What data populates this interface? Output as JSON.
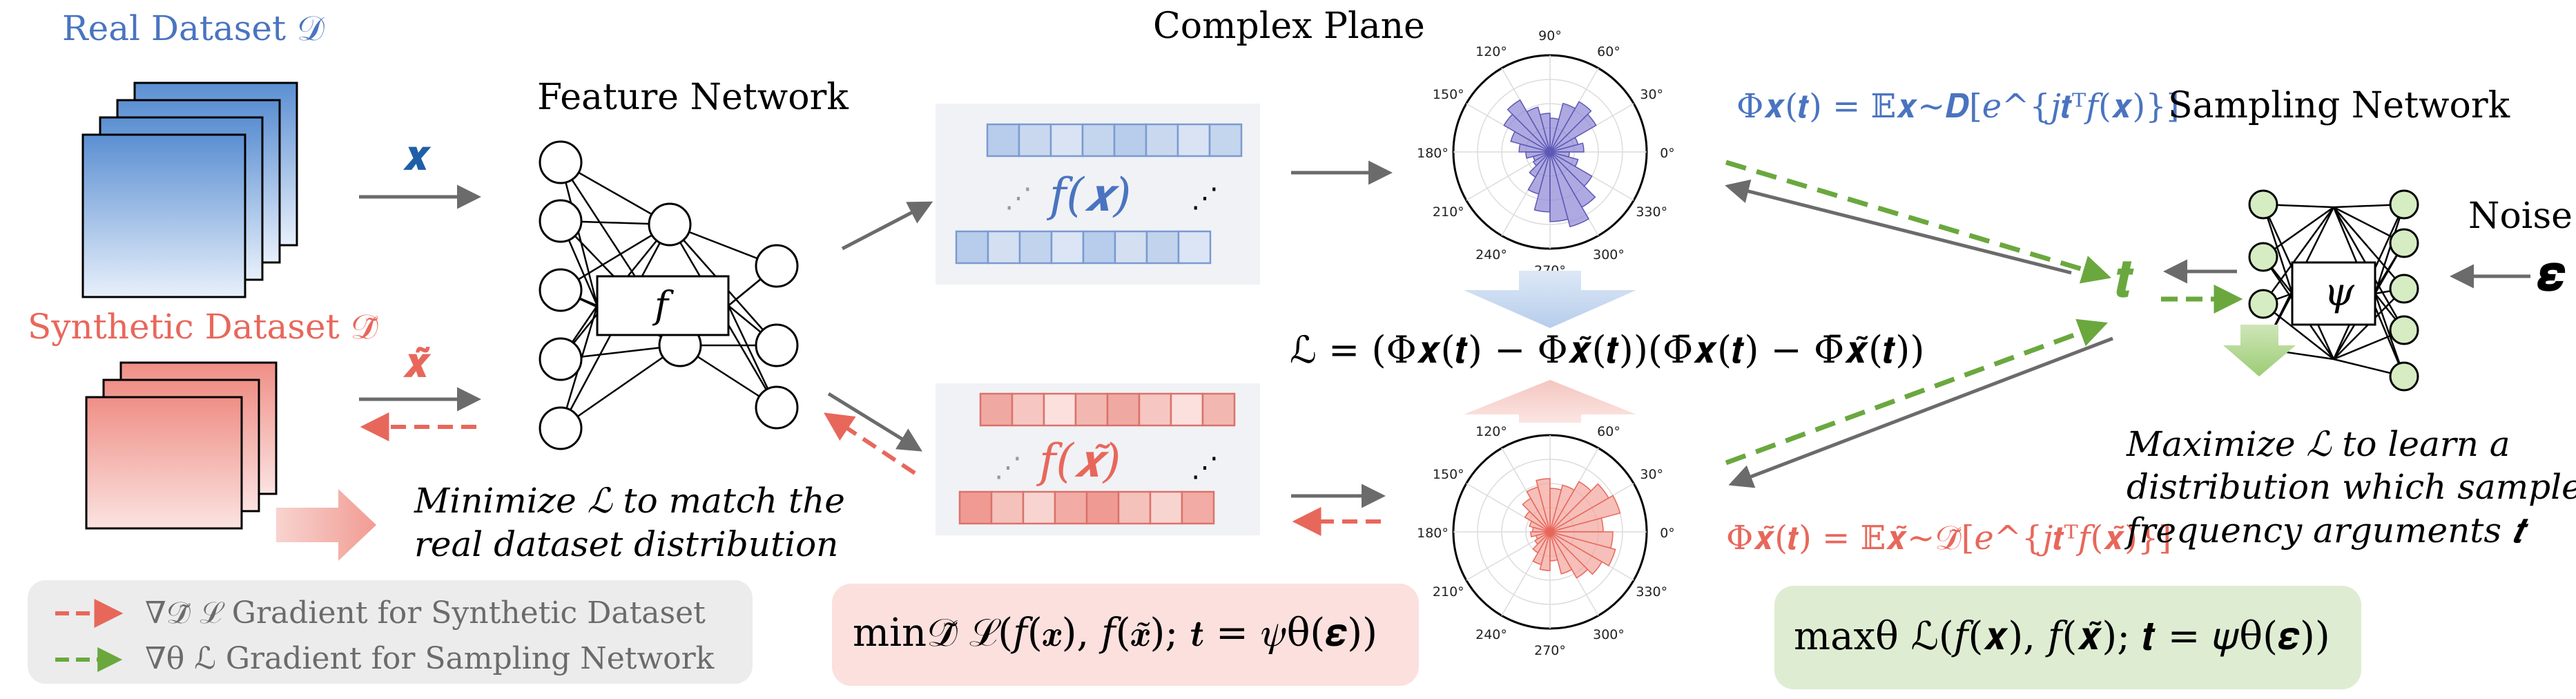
{
  "colors": {
    "blue": "#4a74c0",
    "blue_dark": "#1f5fa8",
    "red": "#e8675b",
    "green": "#6aa83e",
    "gray": "#6b6b6b",
    "black": "#000000"
  },
  "labels": {
    "real_dataset": "Real Dataset 𝒟",
    "synthetic_dataset": "Synthetic Dataset 𝒟̃",
    "x": "𝒙",
    "x_tilde": "𝒙̃",
    "feature_network": "Feature Network",
    "f": "𝑓",
    "fx": "𝑓(𝒙)",
    "fx_tilde": "𝑓(𝒙̃)",
    "complex_plane": "Complex Plane",
    "phi_x": "Φ𝒙(𝒕) = 𝔼𝒙∼𝑫[𝑒^{𝑗𝒕ᵀ𝑓(𝒙)}]",
    "phi_x_tilde": "Φ𝒙̃(𝒕) = 𝔼𝒙̃∼𝒟̃[𝑒^{𝑗𝒕ᵀ𝑓(𝒙̃)}]",
    "loss": "ℒ = (Φ𝒙(𝒕) − Φ𝒙̃(𝒕))(Φ̄𝒙(𝒕) − Φ̄𝒙̃(𝒕))",
    "sampling_network": "Sampling Network",
    "psi": "𝜓",
    "t": "𝒕",
    "noise": "Noise",
    "epsilon": "𝜺",
    "minimize_line1": "Minimize ℒ to match the",
    "minimize_line2": "real dataset distribution",
    "maximize_line1": "Maximize ℒ to learn a",
    "maximize_line2": "distribution which samples",
    "maximize_line3": "frequency arguments 𝒕",
    "legend_red": "∇𝒟̃ ℒ Gradient for Synthetic Dataset",
    "legend_green": "∇θ ℒ Gradient for Sampling Network",
    "min_formula": "min𝒟̃ ℒ(𝑓(𝒙), 𝑓(𝒙̃); 𝒕 = 𝜓θ(𝜺))",
    "max_formula": "maxθ ℒ(𝑓(𝒙), 𝑓(𝒙̃); 𝒕 = 𝜓θ(𝜺))"
  },
  "polar_angle_labels": [
    "90°",
    "60°",
    "30°",
    "0°",
    "330°",
    "300°",
    "270°",
    "240°",
    "210°",
    "180°",
    "150°",
    "120°"
  ],
  "polar_blue_radii": [
    0.35,
    0.3,
    0.55,
    0.6,
    0.52,
    0.35,
    0.4,
    0.48,
    0.62,
    0.55,
    0.42,
    0.32,
    0.25,
    0.18,
    0.2,
    0.3,
    0.45,
    0.62,
    0.72,
    0.8,
    0.66,
    0.5,
    0.3,
    0.2
  ],
  "polar_red_radii": [
    0.55,
    0.75,
    0.7,
    0.6,
    0.5,
    0.45,
    0.55,
    0.48,
    0.4,
    0.3,
    0.22,
    0.18,
    0.2,
    0.15,
    0.18,
    0.25,
    0.35,
    0.4,
    0.3,
    0.45,
    0.55,
    0.62,
    0.7,
    0.65
  ],
  "feature_cells": 8
}
